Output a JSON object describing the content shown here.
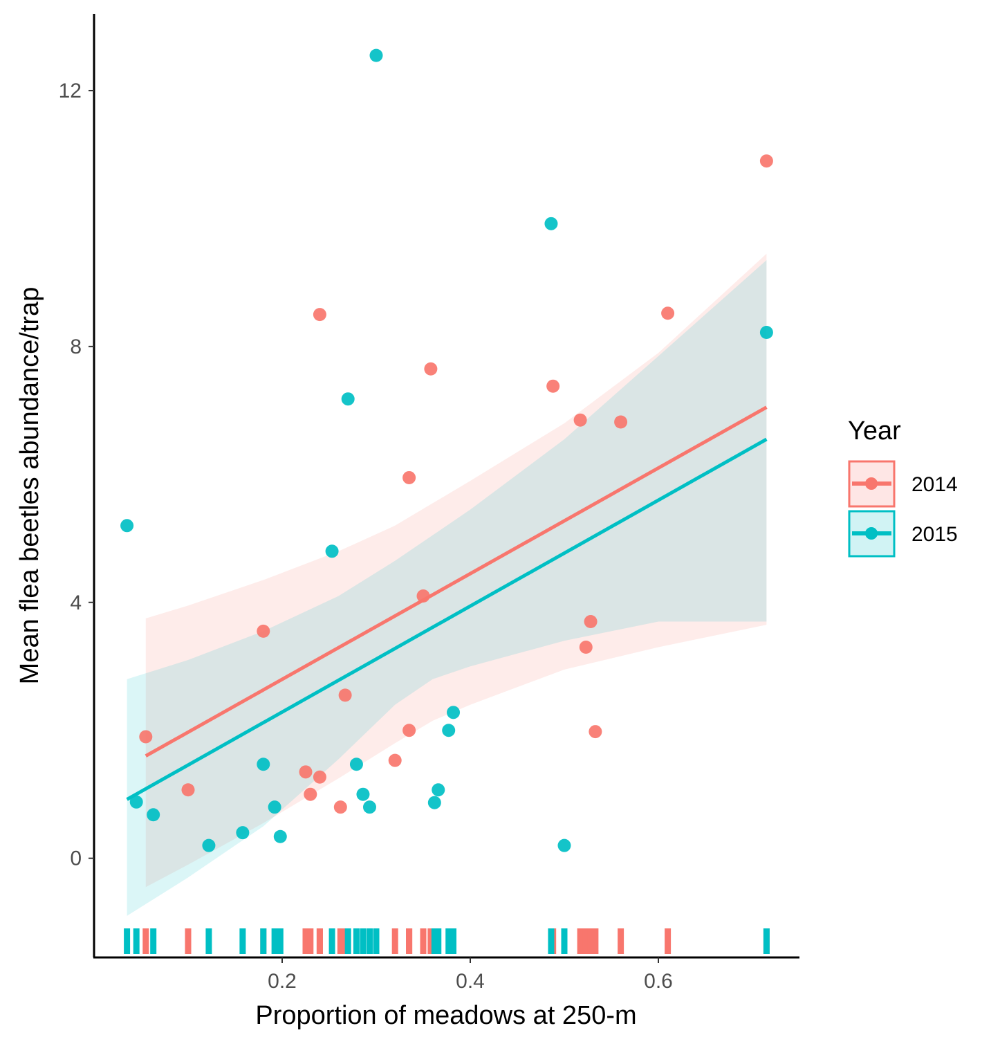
{
  "chart_data": {
    "type": "scatter",
    "title": "",
    "xlabel": "Proportion of meadows at 250-m",
    "ylabel": "Mean flea beetles abundance/trap",
    "xlim": [
      0.0,
      0.75
    ],
    "ylim": [
      -1.55,
      13.2
    ],
    "x_ticks": [
      0.2,
      0.4,
      0.6
    ],
    "y_ticks": [
      0,
      4,
      8,
      12
    ],
    "x_tick_labels": [
      "0.2",
      "0.4",
      "0.6"
    ],
    "y_tick_labels": [
      "0",
      "4",
      "8",
      "12"
    ],
    "grid": false,
    "rug": true,
    "legend": {
      "title": "Year",
      "position": "right"
    },
    "series": [
      {
        "name": "2014",
        "color": "#F8766D",
        "points": [
          {
            "x": 0.055,
            "y": 1.9
          },
          {
            "x": 0.1,
            "y": 1.07
          },
          {
            "x": 0.18,
            "y": 3.55
          },
          {
            "x": 0.225,
            "y": 1.35
          },
          {
            "x": 0.23,
            "y": 1.0
          },
          {
            "x": 0.24,
            "y": 8.5
          },
          {
            "x": 0.24,
            "y": 1.27
          },
          {
            "x": 0.262,
            "y": 0.8
          },
          {
            "x": 0.267,
            "y": 2.55
          },
          {
            "x": 0.32,
            "y": 1.53
          },
          {
            "x": 0.335,
            "y": 5.95
          },
          {
            "x": 0.335,
            "y": 2.0
          },
          {
            "x": 0.35,
            "y": 4.1
          },
          {
            "x": 0.358,
            "y": 7.65
          },
          {
            "x": 0.488,
            "y": 7.38
          },
          {
            "x": 0.517,
            "y": 6.85
          },
          {
            "x": 0.523,
            "y": 3.3
          },
          {
            "x": 0.528,
            "y": 3.7
          },
          {
            "x": 0.533,
            "y": 1.98
          },
          {
            "x": 0.56,
            "y": 6.82
          },
          {
            "x": 0.61,
            "y": 8.52
          },
          {
            "x": 0.715,
            "y": 10.9
          }
        ],
        "fit": {
          "x": [
            0.055,
            0.715
          ],
          "y": [
            1.6,
            7.05
          ]
        },
        "ci": {
          "x": [
            0.055,
            0.1,
            0.18,
            0.26,
            0.32,
            0.36,
            0.4,
            0.5,
            0.6,
            0.715
          ],
          "upper": [
            3.75,
            3.95,
            4.35,
            4.8,
            5.2,
            5.55,
            5.9,
            6.8,
            7.9,
            9.45
          ],
          "lower": [
            -0.45,
            -0.1,
            0.55,
            1.25,
            1.8,
            2.15,
            2.4,
            2.95,
            3.3,
            3.65
          ]
        }
      },
      {
        "name": "2015",
        "color": "#00BFC4",
        "points": [
          {
            "x": 0.035,
            "y": 5.2
          },
          {
            "x": 0.045,
            "y": 0.88
          },
          {
            "x": 0.063,
            "y": 0.68
          },
          {
            "x": 0.122,
            "y": 0.2
          },
          {
            "x": 0.158,
            "y": 0.4
          },
          {
            "x": 0.18,
            "y": 1.47
          },
          {
            "x": 0.192,
            "y": 0.8
          },
          {
            "x": 0.198,
            "y": 0.34
          },
          {
            "x": 0.253,
            "y": 4.8
          },
          {
            "x": 0.27,
            "y": 7.18
          },
          {
            "x": 0.279,
            "y": 1.47
          },
          {
            "x": 0.286,
            "y": 1.0
          },
          {
            "x": 0.293,
            "y": 0.8
          },
          {
            "x": 0.3,
            "y": 12.55
          },
          {
            "x": 0.362,
            "y": 0.87
          },
          {
            "x": 0.366,
            "y": 1.07
          },
          {
            "x": 0.377,
            "y": 2.0
          },
          {
            "x": 0.382,
            "y": 2.28
          },
          {
            "x": 0.486,
            "y": 9.92
          },
          {
            "x": 0.5,
            "y": 0.2
          },
          {
            "x": 0.715,
            "y": 8.22
          }
        ],
        "fit": {
          "x": [
            0.035,
            0.715
          ],
          "y": [
            0.92,
            6.55
          ]
        },
        "ci": {
          "x": [
            0.035,
            0.1,
            0.18,
            0.26,
            0.32,
            0.36,
            0.4,
            0.5,
            0.6,
            0.715
          ],
          "upper": [
            2.8,
            3.1,
            3.55,
            4.1,
            4.65,
            5.05,
            5.45,
            6.55,
            7.85,
            9.35
          ],
          "lower": [
            -0.9,
            -0.3,
            0.5,
            1.55,
            2.4,
            2.8,
            3.0,
            3.4,
            3.7,
            3.7
          ]
        }
      }
    ]
  }
}
